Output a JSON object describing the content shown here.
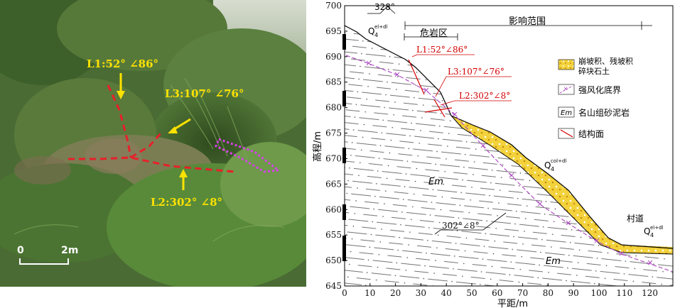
{
  "photo": {
    "labels": {
      "l1": "L1:52°  ∠86°",
      "l3": "L3:107°  ∠76°",
      "l2": "L2:302°  ∠8°"
    },
    "scale_bar": {
      "start": "0",
      "end": "2m"
    }
  },
  "section": {
    "top_azimuth": "328°",
    "influence_range": "影响范围",
    "danger_zone": "危岩区",
    "joints": {
      "l1": "L1:52°∠86°",
      "l3": "L3:107°∠76°",
      "l2": "L2:302°∠8°"
    },
    "bedding": "302°∠8°",
    "strata": {
      "em_upper": "Em",
      "em_lower": "Em"
    },
    "soil_labels": {
      "top": {
        "q": "Q",
        "sub": "4",
        "sup": "el+dl"
      },
      "mid": {
        "q": "Q",
        "sub": "4",
        "sup": "col+dl"
      },
      "right": {
        "q": "Q",
        "sub": "4",
        "sup": "el+dl"
      }
    },
    "village_road": "村道",
    "legend": {
      "items": [
        {
          "label": "崩坡积、残坡积碎块石土",
          "line1": "崩坡积、残坡积",
          "line2": "碎块石土",
          "symbol": "colluvium"
        },
        {
          "label": "强风化底界",
          "symbol": "weathering-boundary"
        },
        {
          "label": "名山组砂泥岩",
          "symbol": "Em"
        },
        {
          "label": "结构面",
          "symbol": "structural-plane"
        }
      ]
    },
    "axes": {
      "xlabel": "平距/m",
      "ylabel": "高程/m",
      "xticks": [
        "0",
        "10",
        "20",
        "30",
        "40",
        "50",
        "60",
        "70",
        "80",
        "90",
        "100",
        "110",
        "120"
      ],
      "yticks": [
        "700",
        "695",
        "690",
        "685",
        "680",
        "675",
        "670",
        "665",
        "660",
        "655",
        "650",
        "645"
      ]
    },
    "colors": {
      "joint": "#d40000",
      "colluvium": "#f3d23c",
      "weathering": "#b04fc3"
    }
  }
}
